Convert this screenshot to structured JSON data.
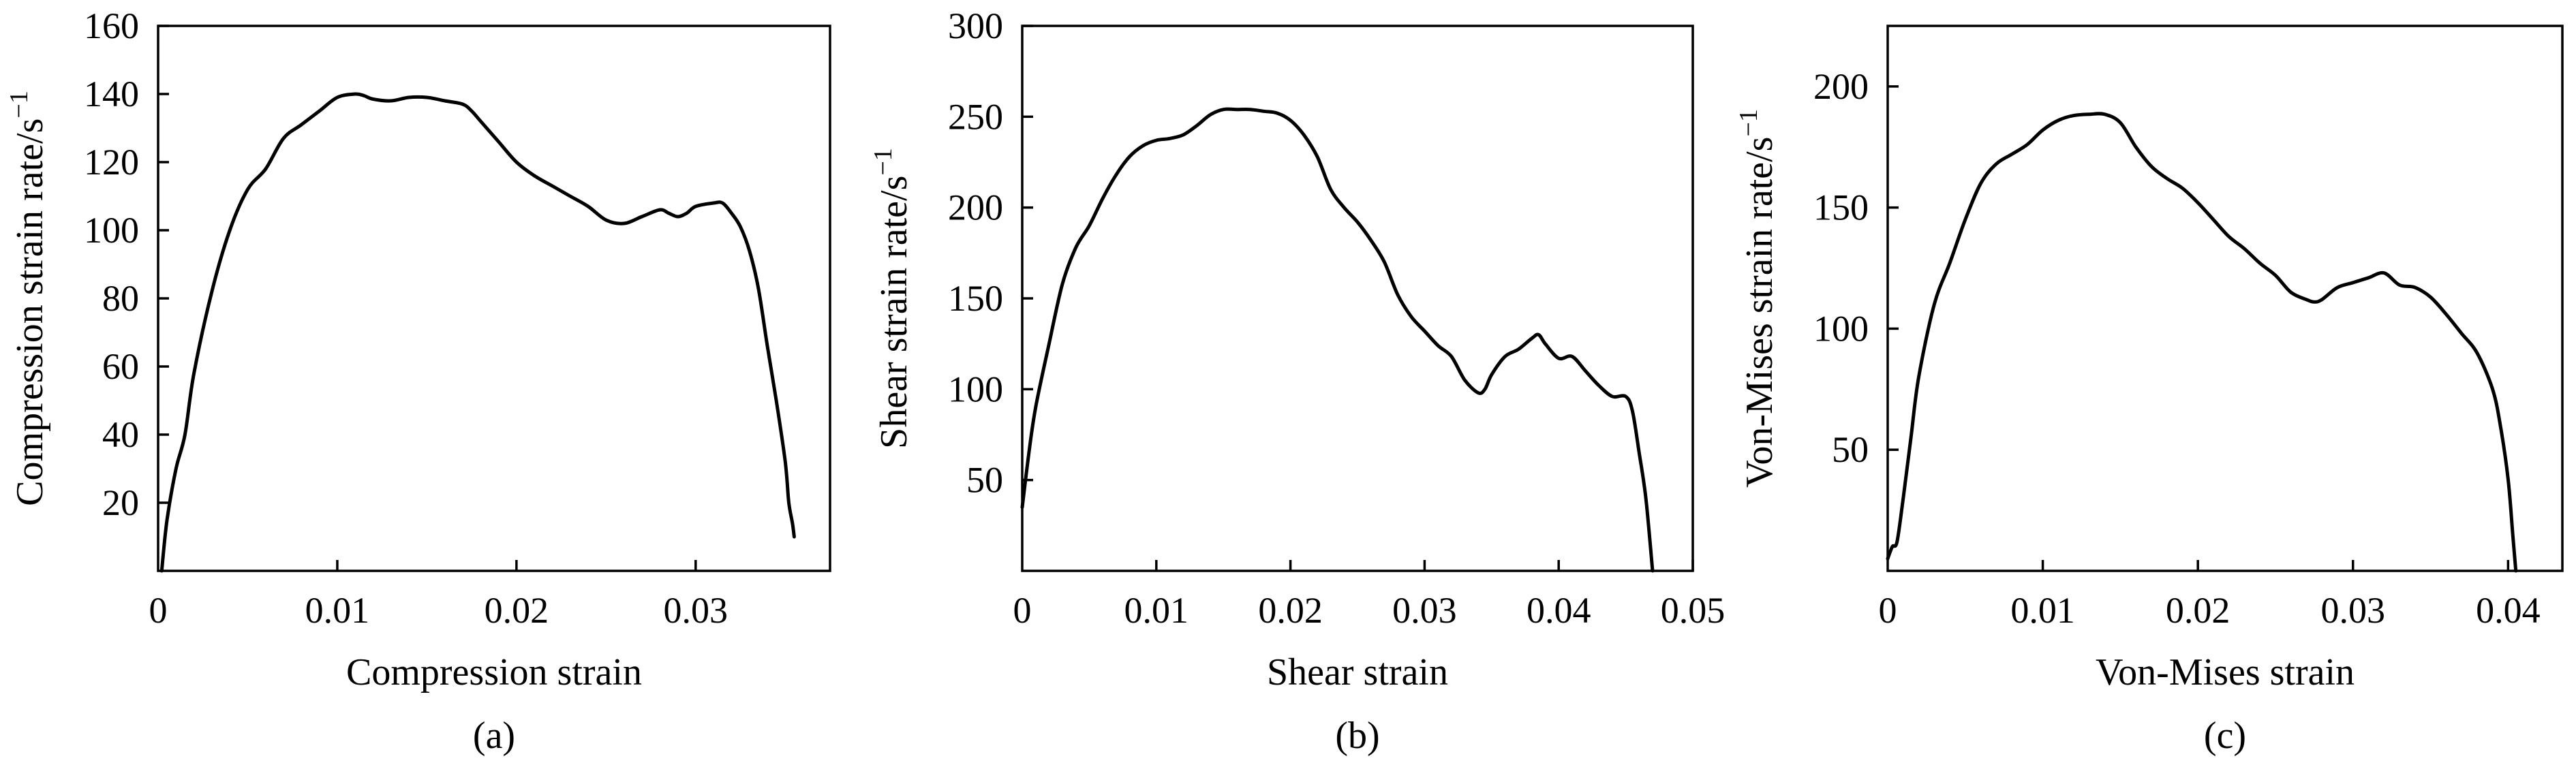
{
  "chart_data": [
    {
      "type": "line",
      "panel_label": "(a)",
      "xlabel": "Compression strain",
      "ylabel": "Compression strain rate/s",
      "ylabel_superscript": "−1",
      "xlim": [
        0,
        0.0375
      ],
      "ylim": [
        0,
        160
      ],
      "x_ticks": [
        0,
        0.01,
        0.02,
        0.03
      ],
      "x_tick_labels": [
        "0",
        "0.01",
        "0.02",
        "0.03"
      ],
      "y_ticks": [
        20,
        40,
        60,
        80,
        100,
        120,
        140,
        160
      ],
      "y_tick_labels": [
        "20",
        "40",
        "60",
        "80",
        "100",
        "120",
        "140",
        "160"
      ],
      "series": [
        {
          "x": [
            0.0002,
            0.0005,
            0.001,
            0.0015,
            0.002,
            0.003,
            0.004,
            0.005,
            0.006,
            0.007,
            0.008,
            0.009,
            0.01,
            0.011,
            0.0115,
            0.012,
            0.013,
            0.014,
            0.015,
            0.016,
            0.017,
            0.0175,
            0.018,
            0.019,
            0.02,
            0.021,
            0.022,
            0.023,
            0.024,
            0.025,
            0.026,
            0.027,
            0.028,
            0.0285,
            0.029,
            0.0295,
            0.03,
            0.031,
            0.0315,
            0.032,
            0.0325,
            0.033,
            0.0335,
            0.034,
            0.0345,
            0.035,
            0.0352,
            0.0354,
            0.0355
          ],
          "y": [
            0,
            15,
            30,
            40,
            58,
            82,
            100,
            112,
            118,
            127,
            131,
            135,
            139,
            140,
            139.5,
            138.5,
            138,
            139,
            139,
            138,
            137,
            135,
            132,
            126,
            120,
            116,
            113,
            110,
            107,
            103,
            102,
            104,
            106,
            105,
            104,
            105,
            107,
            108,
            108,
            105,
            101,
            94,
            83,
            66,
            50,
            32,
            20,
            14,
            10
          ]
        }
      ]
    },
    {
      "type": "line",
      "panel_label": "(b)",
      "xlabel": "Shear strain",
      "ylabel": "Shear strain rate/s",
      "ylabel_superscript": "−1",
      "xlim": [
        0,
        0.05
      ],
      "ylim": [
        0,
        300
      ],
      "x_ticks": [
        0,
        0.01,
        0.02,
        0.03,
        0.04,
        0.05
      ],
      "x_tick_labels": [
        "0",
        "0.01",
        "0.02",
        "0.03",
        "0.04",
        "0.05"
      ],
      "y_ticks": [
        50,
        100,
        150,
        200,
        250,
        300
      ],
      "y_tick_labels": [
        "50",
        "100",
        "150",
        "200",
        "250",
        "300"
      ],
      "series": [
        {
          "x": [
            0,
            0.0005,
            0.001,
            0.002,
            0.003,
            0.004,
            0.005,
            0.006,
            0.007,
            0.008,
            0.009,
            0.01,
            0.011,
            0.012,
            0.013,
            0.014,
            0.015,
            0.016,
            0.017,
            0.018,
            0.019,
            0.02,
            0.021,
            0.022,
            0.023,
            0.024,
            0.025,
            0.026,
            0.027,
            0.028,
            0.029,
            0.03,
            0.031,
            0.032,
            0.033,
            0.034,
            0.0345,
            0.035,
            0.036,
            0.037,
            0.038,
            0.0385,
            0.039,
            0.04,
            0.041,
            0.042,
            0.043,
            0.044,
            0.045,
            0.0455,
            0.046,
            0.0465,
            0.047
          ],
          "y": [
            35,
            65,
            90,
            125,
            158,
            178,
            190,
            205,
            218,
            228,
            234,
            237,
            238,
            240,
            245,
            251,
            254,
            254,
            254,
            253,
            252,
            248,
            240,
            228,
            210,
            200,
            192,
            182,
            170,
            152,
            140,
            132,
            124,
            118,
            105,
            98,
            100,
            108,
            118,
            122,
            128,
            130,
            125,
            117,
            118,
            110,
            102,
            96,
            96,
            88,
            65,
            40,
            0
          ]
        }
      ]
    },
    {
      "type": "line",
      "panel_label": "(c)",
      "xlabel": "Von-Mises strain",
      "ylabel": "Von-Mises strain rate/s",
      "ylabel_superscript": "−1",
      "xlim": [
        0,
        0.0435
      ],
      "ylim": [
        0,
        225
      ],
      "x_ticks": [
        0,
        0.01,
        0.02,
        0.03,
        0.04
      ],
      "x_tick_labels": [
        "0",
        "0.01",
        "0.02",
        "0.03",
        "0.04"
      ],
      "y_ticks": [
        50,
        100,
        150,
        200
      ],
      "y_tick_labels": [
        "50",
        "100",
        "150",
        "200"
      ],
      "series": [
        {
          "x": [
            0,
            0.0003,
            0.0006,
            0.001,
            0.0015,
            0.002,
            0.003,
            0.004,
            0.005,
            0.006,
            0.007,
            0.008,
            0.009,
            0.01,
            0.011,
            0.012,
            0.013,
            0.014,
            0.015,
            0.016,
            0.017,
            0.018,
            0.019,
            0.02,
            0.021,
            0.022,
            0.023,
            0.024,
            0.025,
            0.026,
            0.027,
            0.0275,
            0.028,
            0.029,
            0.03,
            0.031,
            0.032,
            0.033,
            0.034,
            0.035,
            0.036,
            0.037,
            0.038,
            0.039,
            0.0395,
            0.04,
            0.0403,
            0.0405
          ],
          "y": [
            5,
            10,
            12,
            30,
            55,
            80,
            110,
            127,
            145,
            160,
            168,
            172,
            176,
            182,
            186,
            188,
            188.5,
            188.5,
            185,
            175,
            167,
            162,
            158,
            152,
            145,
            138,
            133,
            127,
            122,
            115,
            112,
            111,
            112,
            117,
            119,
            121,
            123,
            118,
            117,
            113,
            106,
            98,
            90,
            75,
            60,
            38,
            15,
            0
          ]
        }
      ]
    }
  ]
}
